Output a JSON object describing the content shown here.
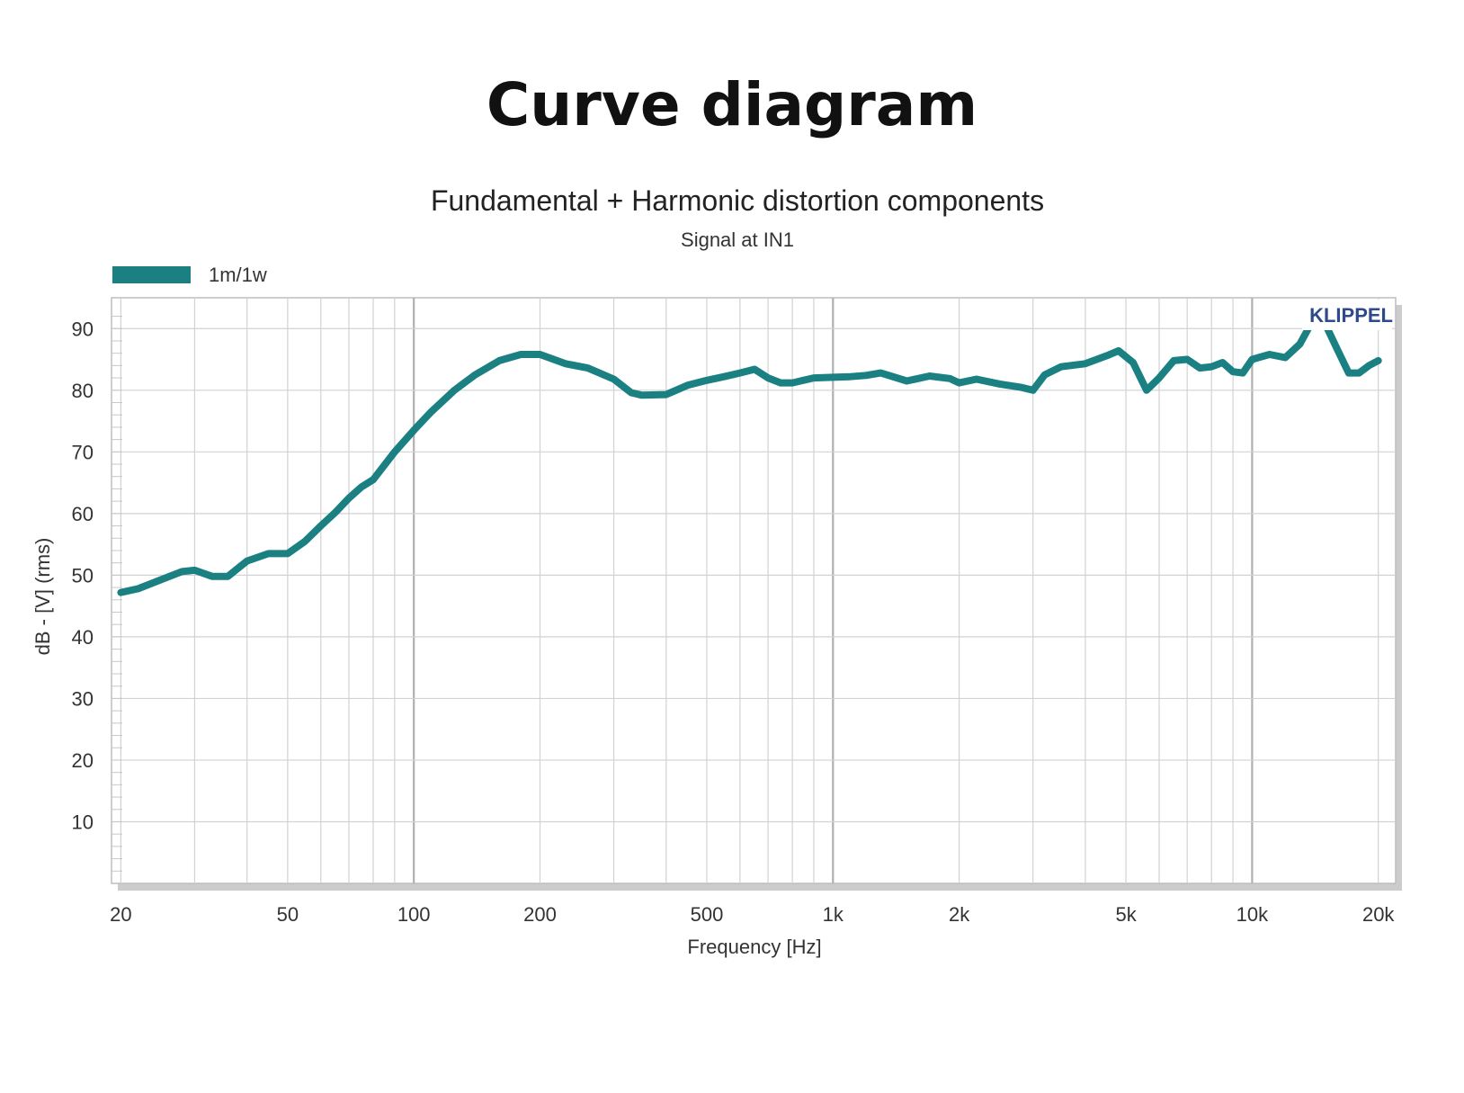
{
  "heading": "Curve diagram",
  "chart_data": {
    "type": "line",
    "title": "Fundamental + Harmonic distortion components",
    "subtitle": "Signal at IN1",
    "xlabel": "Frequency [Hz]",
    "ylabel": "dB - [V]  (rms)",
    "x_scale": "log",
    "xlim": [
      19,
      22000
    ],
    "ylim": [
      0,
      95
    ],
    "x_ticks": [
      {
        "value": 20,
        "label": "20"
      },
      {
        "value": 50,
        "label": "50"
      },
      {
        "value": 100,
        "label": "100"
      },
      {
        "value": 200,
        "label": "200"
      },
      {
        "value": 500,
        "label": "500"
      },
      {
        "value": 1000,
        "label": "1k"
      },
      {
        "value": 2000,
        "label": "2k"
      },
      {
        "value": 5000,
        "label": "5k"
      },
      {
        "value": 10000,
        "label": "10k"
      },
      {
        "value": 20000,
        "label": "20k"
      }
    ],
    "y_ticks": [
      {
        "value": 10,
        "label": "10"
      },
      {
        "value": 20,
        "label": "20"
      },
      {
        "value": 30,
        "label": "30"
      },
      {
        "value": 40,
        "label": "40"
      },
      {
        "value": 50,
        "label": "50"
      },
      {
        "value": 60,
        "label": "60"
      },
      {
        "value": 70,
        "label": "70"
      },
      {
        "value": 80,
        "label": "80"
      },
      {
        "value": 90,
        "label": "90"
      }
    ],
    "grid": true,
    "legend_position": "top-left",
    "watermark": "KLIPPEL",
    "series": [
      {
        "name": "1m/1w",
        "color": "#1a8082",
        "x": [
          20,
          22,
          25,
          28,
          30,
          33,
          36,
          40,
          45,
          50,
          55,
          60,
          65,
          70,
          75,
          80,
          90,
          100,
          110,
          125,
          140,
          160,
          180,
          200,
          230,
          260,
          300,
          330,
          350,
          400,
          450,
          500,
          550,
          600,
          650,
          700,
          750,
          800,
          900,
          1000,
          1100,
          1200,
          1300,
          1500,
          1700,
          1900,
          2000,
          2200,
          2500,
          2800,
          3000,
          3200,
          3500,
          4000,
          4500,
          4800,
          5200,
          5600,
          6000,
          6500,
          7000,
          7500,
          8000,
          8500,
          9000,
          9500,
          10000,
          11000,
          12000,
          13000,
          14000,
          15000,
          16000,
          17000,
          18000,
          19000,
          20000
        ],
        "y": [
          47.2,
          47.8,
          49.3,
          50.6,
          50.8,
          49.8,
          49.8,
          52.3,
          53.5,
          53.5,
          55.5,
          58.0,
          60.2,
          62.5,
          64.3,
          65.5,
          70.0,
          73.5,
          76.5,
          80.0,
          82.5,
          84.8,
          85.8,
          85.8,
          84.3,
          83.6,
          81.8,
          79.6,
          79.2,
          79.3,
          80.8,
          81.6,
          82.2,
          82.8,
          83.4,
          82.0,
          81.2,
          81.2,
          82.0,
          82.1,
          82.2,
          82.4,
          82.8,
          81.5,
          82.3,
          81.9,
          81.2,
          81.8,
          81.0,
          80.5,
          80.0,
          82.5,
          83.8,
          84.3,
          85.6,
          86.4,
          84.5,
          80.0,
          82.0,
          84.8,
          85.0,
          83.6,
          83.8,
          84.5,
          83.0,
          82.8,
          85.0,
          85.8,
          85.3,
          87.5,
          91.5,
          90.5,
          86.5,
          82.8,
          82.8,
          84.0,
          84.8
        ]
      }
    ]
  }
}
